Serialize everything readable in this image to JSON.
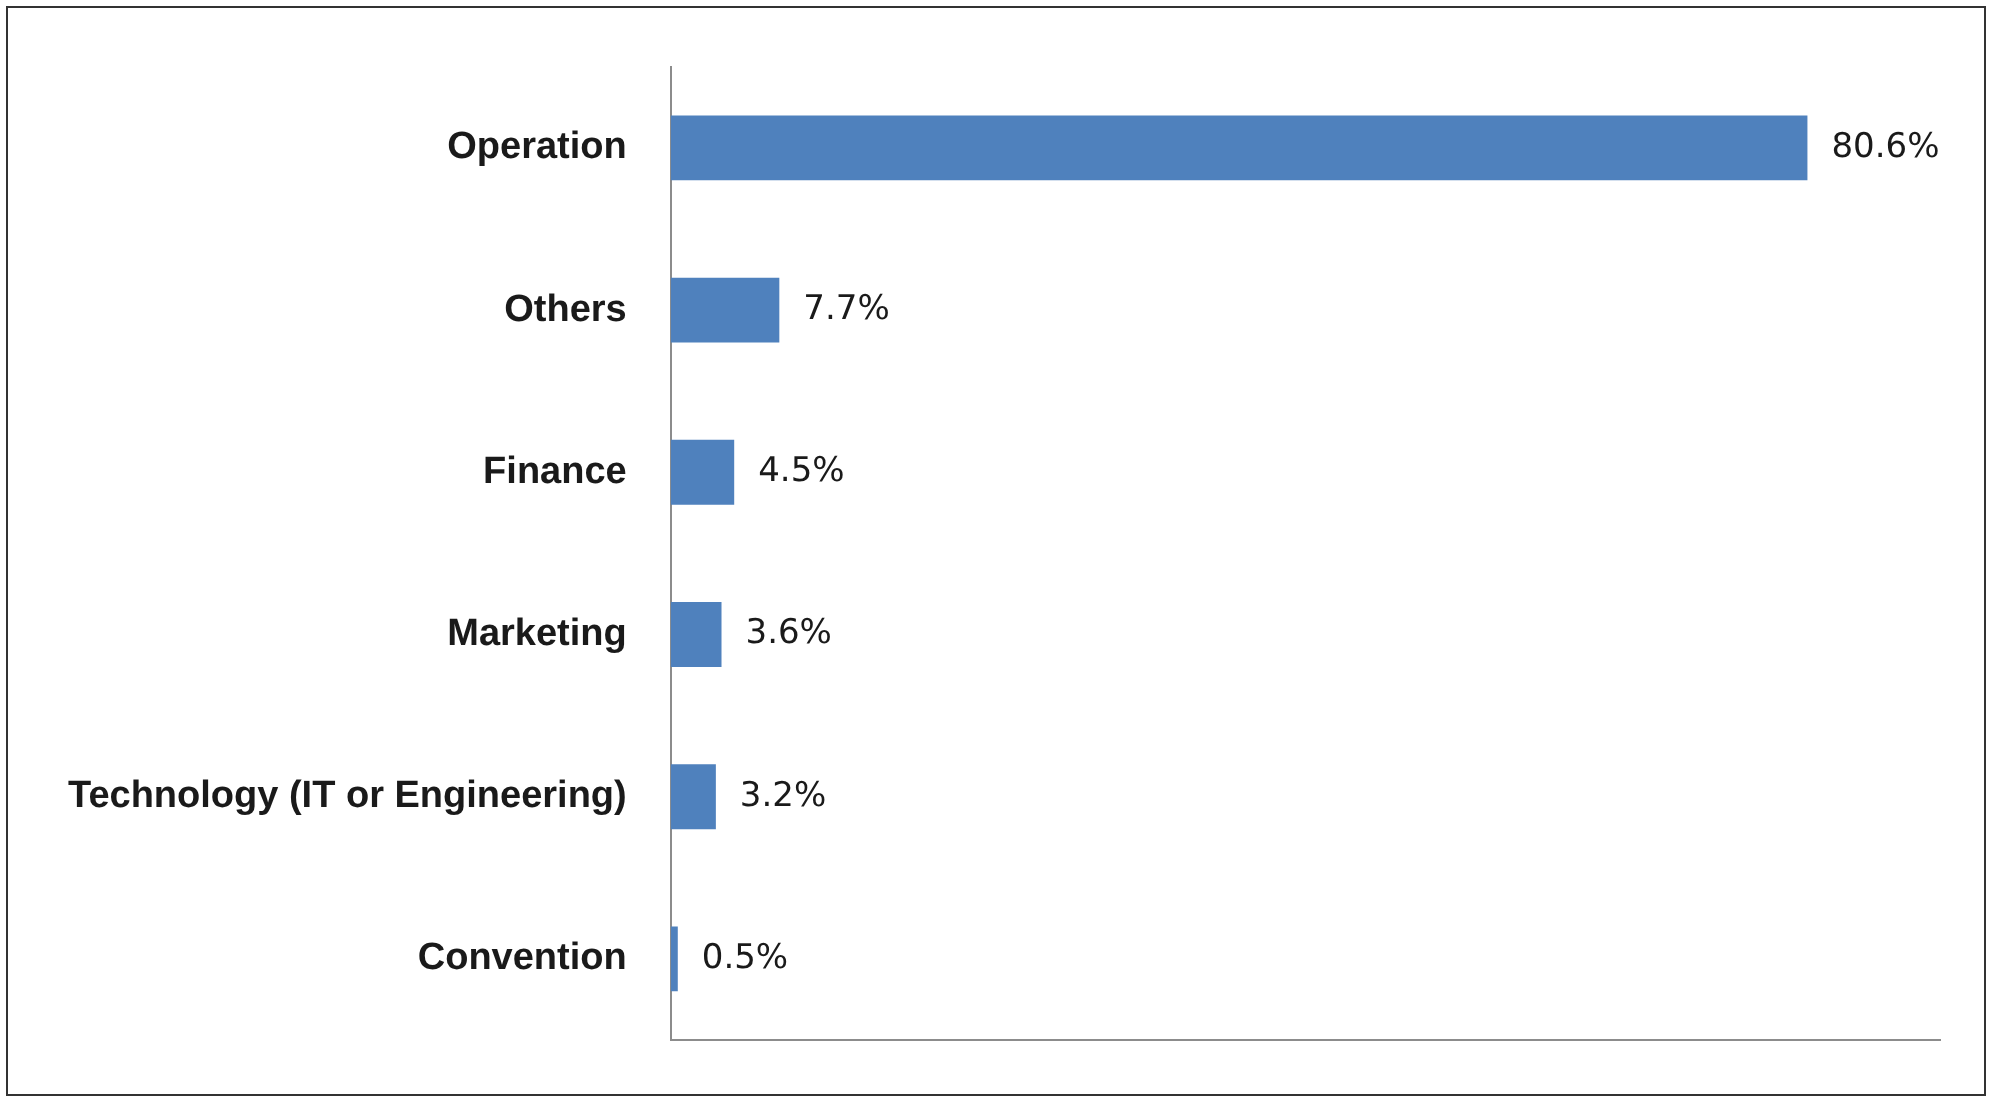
{
  "chart_data": {
    "type": "bar",
    "orientation": "horizontal",
    "categories": [
      "Operation",
      "Others",
      "Finance",
      "Marketing",
      "Technology (IT or Engineering)",
      "Convention"
    ],
    "values": [
      80.6,
      7.7,
      4.5,
      3.6,
      3.2,
      0.5
    ],
    "value_labels": [
      "80.6%",
      "7.7%",
      "4.5%",
      "3.6%",
      "3.2%",
      "0.5%"
    ],
    "color": "#4f81bd",
    "xlim": [
      0,
      90
    ],
    "tick_labels": "y",
    "grid": false,
    "legend": false
  }
}
